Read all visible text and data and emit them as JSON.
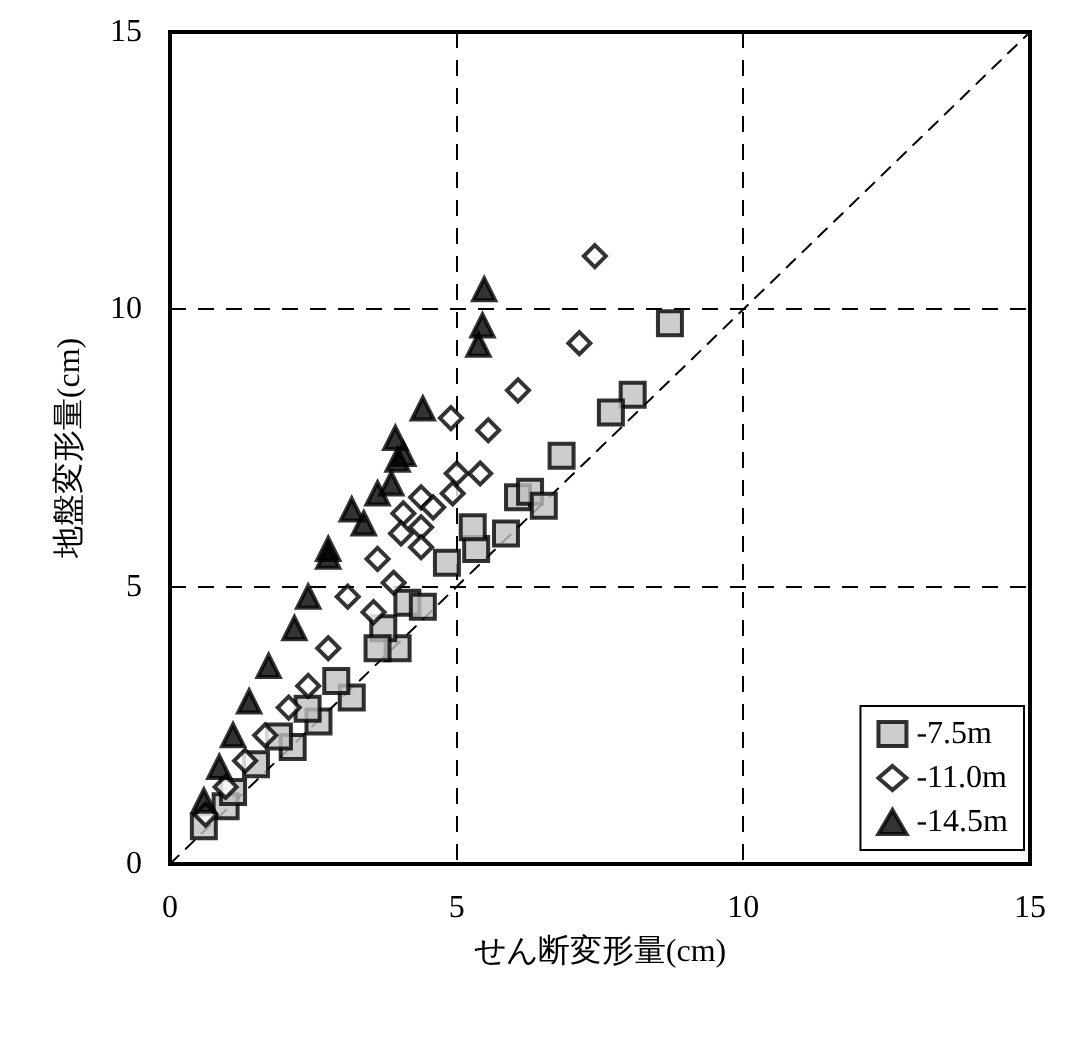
{
  "chart_data": {
    "type": "scatter",
    "xlabel": "せん断変形量(cm)",
    "ylabel": "地盤変形量(cm)",
    "xlim": [
      0,
      15
    ],
    "ylim": [
      0,
      15
    ],
    "xticks": [
      0,
      5,
      10,
      15
    ],
    "yticks": [
      0,
      5,
      10,
      15
    ],
    "grid": true,
    "legend": "bottom right",
    "series": [
      {
        "name": "-7.5m",
        "color": "#c0c0c0",
        "marker": "square",
        "x": [
          8.72,
          8.07,
          7.69,
          6.83,
          6.07,
          6.28,
          6.52,
          5.86,
          5.34,
          5.28,
          4.14,
          3.97,
          4.83,
          4.41,
          3.72,
          3.62,
          3.17,
          2.59,
          2.14,
          0.97,
          0.59,
          2.9,
          2.4,
          1.9,
          1.5,
          1.1
        ],
        "values": [
          9.75,
          8.46,
          8.14,
          7.36,
          6.61,
          6.71,
          6.46,
          5.96,
          5.68,
          6.07,
          4.71,
          3.89,
          5.43,
          4.64,
          4.25,
          3.89,
          3.0,
          2.57,
          2.11,
          1.04,
          0.68,
          3.3,
          2.8,
          2.3,
          1.8,
          1.3
        ]
      },
      {
        "name": "-11.0m",
        "color": "#ffffff",
        "marker": "diamond",
        "x": [
          7.41,
          7.14,
          6.07,
          5.55,
          4.9,
          5.41,
          5.0,
          4.93,
          4.38,
          4.59,
          4.07,
          4.38,
          4.03,
          4.38,
          3.62,
          3.9,
          3.55,
          3.1,
          2.76,
          2.41,
          2.07,
          1.66,
          1.31,
          0.97,
          0.62
        ],
        "values": [
          10.96,
          9.39,
          8.54,
          7.82,
          8.04,
          7.04,
          7.04,
          6.68,
          6.61,
          6.43,
          6.32,
          6.07,
          5.96,
          5.71,
          5.5,
          5.07,
          4.54,
          4.82,
          3.89,
          3.21,
          2.82,
          2.32,
          1.86,
          1.39,
          0.89
        ]
      },
      {
        "name": "-14.5m",
        "color": "#000000",
        "marker": "triangle",
        "x": [
          5.48,
          5.45,
          5.38,
          4.41,
          3.93,
          4.07,
          3.86,
          3.17,
          3.38,
          2.76,
          3.97,
          3.62,
          2.76,
          2.41,
          2.17,
          1.72,
          1.38,
          1.1,
          0.86,
          0.59
        ],
        "values": [
          10.36,
          9.71,
          9.36,
          8.21,
          7.68,
          7.39,
          6.86,
          6.39,
          6.14,
          5.68,
          7.29,
          6.68,
          5.54,
          4.82,
          4.25,
          3.57,
          2.93,
          2.32,
          1.75,
          1.14
        ]
      },
      {
        "type": "line",
        "color": "#000000",
        "marker": "none",
        "line_style": "dashed",
        "x": [
          0,
          15
        ],
        "values": [
          0,
          15
        ]
      }
    ]
  }
}
